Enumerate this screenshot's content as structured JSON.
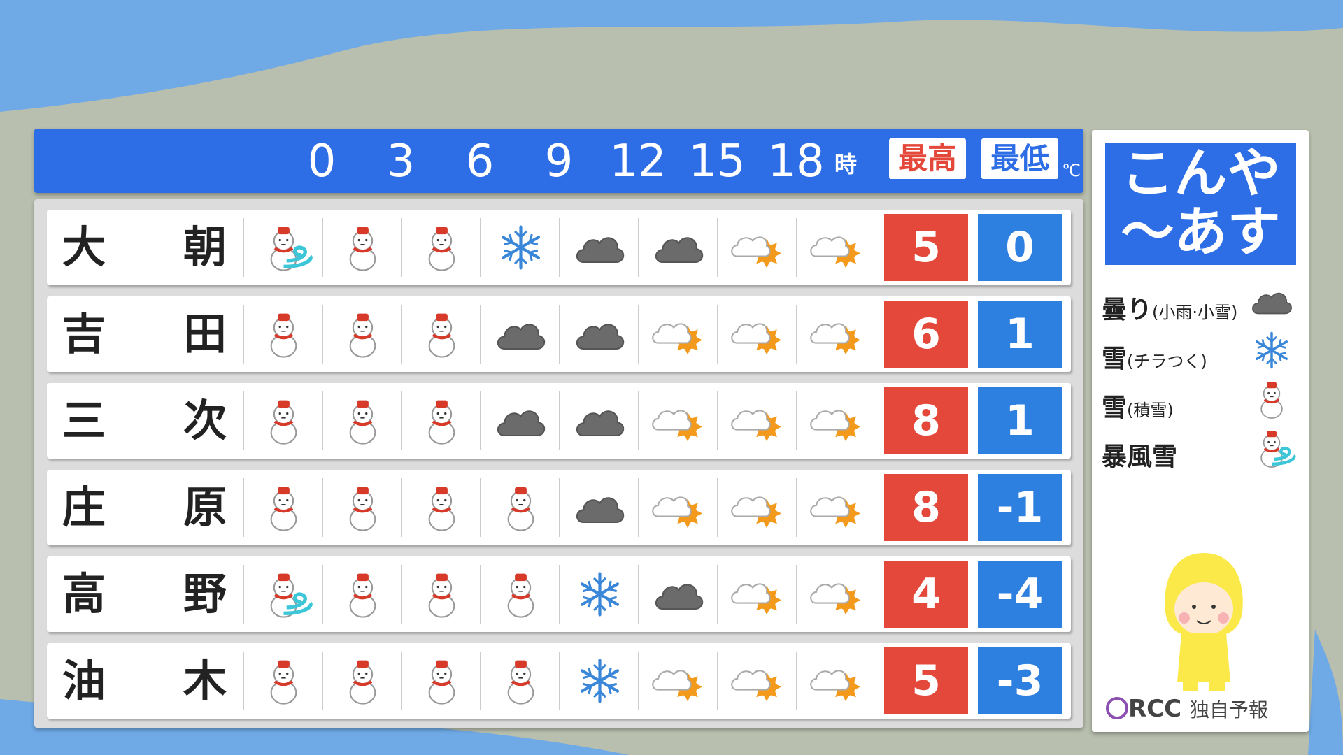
{
  "header": {
    "hours": [
      "0",
      "3",
      "6",
      "9",
      "12",
      "15",
      "18"
    ],
    "hour_unit": "時",
    "high_label": "最高",
    "low_label": "最低",
    "temp_unit": "℃"
  },
  "rows": [
    {
      "name": [
        "大",
        "朝"
      ],
      "high": 5,
      "low": 0
    },
    {
      "name": [
        "吉",
        "田"
      ],
      "high": 6,
      "low": 1
    },
    {
      "name": [
        "三",
        "次"
      ],
      "high": 8,
      "low": 1
    },
    {
      "name": [
        "庄",
        "原"
      ],
      "high": 8,
      "low": -1
    },
    {
      "name": [
        "高",
        "野"
      ],
      "high": 4,
      "low": -4
    },
    {
      "name": [
        "油",
        "木"
      ],
      "high": 5,
      "low": -3
    }
  ],
  "side": {
    "title": [
      "こんや",
      "～あす"
    ],
    "legend": [
      {
        "label": "曇り",
        "note": "(小雨·小雪)"
      },
      {
        "label": "雪",
        "note": "(チラつく)"
      },
      {
        "label": "雪",
        "note": "(積雪)"
      },
      {
        "label": "暴風雪"
      }
    ],
    "footer": {
      "brand": "RCC",
      "text": "独自予報"
    }
  }
}
